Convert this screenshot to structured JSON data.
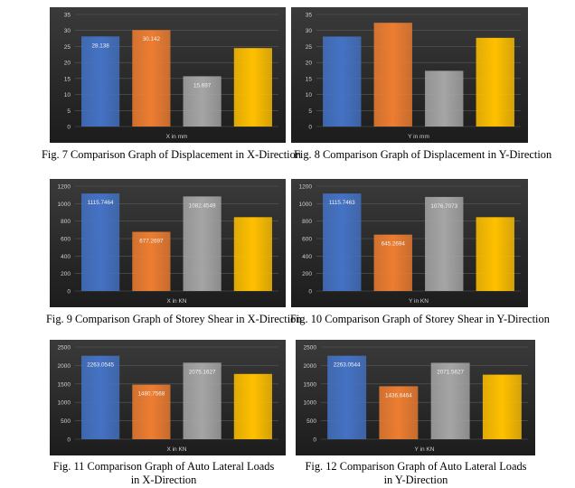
{
  "colors": {
    "panel_bg_top": "#3a3a3a",
    "panel_bg_bottom": "#1c1c1c",
    "gridline": "#5a5a5a",
    "tick_text": "#d0d0d0",
    "bars": [
      "#4472c4",
      "#ed7d31",
      "#a5a5a5",
      "#ffc000"
    ]
  },
  "chart_data": [
    {
      "type": "bar",
      "caption": "Fig. 7 Comparison Graph of Displacement in X-Direction",
      "xlabel": "X in mm",
      "ylim": [
        0,
        35
      ],
      "yticks": [
        0,
        5,
        10,
        15,
        20,
        25,
        30,
        35
      ],
      "values": [
        28.138,
        30.142,
        15.697,
        24.5
      ],
      "value_labels": [
        "28.138",
        "30.142",
        "15.697",
        ""
      ],
      "grid": true
    },
    {
      "type": "bar",
      "caption": "Fig. 8 Comparison Graph of Displacement in Y-Direction",
      "xlabel": "Y in mm",
      "ylim": [
        0,
        35
      ],
      "yticks": [
        0,
        5,
        10,
        15,
        20,
        25,
        30,
        35
      ],
      "values": [
        28.1,
        32.4,
        17.4,
        27.7
      ],
      "value_labels": [
        "",
        "",
        "",
        ""
      ],
      "grid": true
    },
    {
      "type": "bar",
      "caption": "Fig. 9 Comparison Graph of Storey Shear in X-Direction",
      "xlabel": "X in KN",
      "ylim": [
        0,
        1200
      ],
      "yticks": [
        0,
        200,
        400,
        600,
        800,
        1000,
        1200
      ],
      "values": [
        1115.7464,
        677.2697,
        1082.4549,
        845
      ],
      "value_labels": [
        "1115.7464",
        "677.2697",
        "1082.4549",
        ""
      ],
      "grid": true
    },
    {
      "type": "bar",
      "caption": "Fig. 10 Comparison Graph of Storey Shear in Y-Direction",
      "xlabel": "Y in KN",
      "ylim": [
        0,
        1200
      ],
      "yticks": [
        0,
        200,
        400,
        600,
        800,
        1000,
        1200
      ],
      "values": [
        1115.7463,
        645.2694,
        1076.7073,
        845
      ],
      "value_labels": [
        "1115.7463",
        "645.2694",
        "1076.7073",
        ""
      ],
      "grid": true
    },
    {
      "type": "bar",
      "caption": "Fig. 11 Comparison Graph of Auto Lateral Loads in X-Direction",
      "xlabel": "X in KN",
      "ylim": [
        0,
        2500
      ],
      "yticks": [
        0,
        500,
        1000,
        1500,
        2000,
        2500
      ],
      "values": [
        2263.0545,
        1480.7568,
        2075.1627,
        1770
      ],
      "value_labels": [
        "2263.0545",
        "1480.7568",
        "2075.1627",
        ""
      ],
      "grid": true
    },
    {
      "type": "bar",
      "caption": "Fig. 12 Comparison Graph of Auto Lateral Loads in Y-Direction",
      "xlabel": "Y in KN",
      "ylim": [
        0,
        2500
      ],
      "yticks": [
        0,
        500,
        1000,
        1500,
        2000,
        2500
      ],
      "values": [
        2263.0544,
        1436.6464,
        2071.5627,
        1750
      ],
      "value_labels": [
        "2263.0544",
        "1436.6464",
        "2071.5627",
        ""
      ],
      "grid": true
    }
  ]
}
